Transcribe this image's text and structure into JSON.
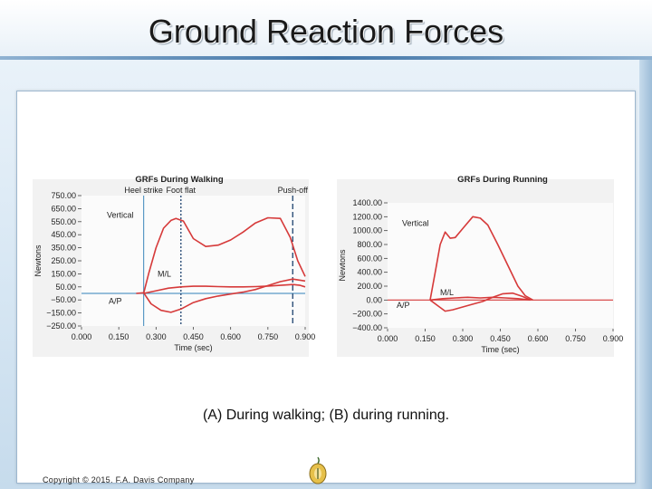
{
  "slide": {
    "title": "Ground Reaction Forces",
    "caption": "(A) During walking; (B) during running.",
    "copyright": "Copyright © 2015. F.A. Davis Company"
  },
  "colors": {
    "curve": "#d63a3a",
    "axis_line": "#5a9ac6",
    "marker_dark": "#2c4f78",
    "text": "#222222"
  },
  "chart_data": [
    {
      "type": "line",
      "title": "GRFs During Walking",
      "xlabel": "Time (sec)",
      "ylabel": "Newtons",
      "xlim": [
        0,
        0.9
      ],
      "ylim": [
        -250,
        750
      ],
      "x_ticks": [
        0.0,
        0.15,
        0.3,
        0.45,
        0.6,
        0.75,
        0.9
      ],
      "x_tick_labels": [
        "0.000",
        "0.150",
        "0.300",
        "0.450",
        "0.600",
        "0.750",
        "0.900"
      ],
      "y_ticks": [
        750,
        650,
        550,
        450,
        350,
        250,
        150,
        50,
        -50,
        -150,
        -250
      ],
      "y_tick_labels": [
        "750.00",
        "650.00",
        "550.00",
        "450.00",
        "350.00",
        "250.00",
        "150.00",
        "50.00",
        "−50.00",
        "−150.00",
        "−250.00"
      ],
      "zero_line": 0,
      "events": [
        {
          "label": "Heel strike",
          "x": 0.25,
          "style": "solid"
        },
        {
          "label": "Foot flat",
          "x": 0.4,
          "style": "dotted"
        },
        {
          "label": "Push-off",
          "x": 0.85,
          "style": "dashed"
        }
      ],
      "series": [
        {
          "name": "Vertical",
          "x": [
            0.25,
            0.27,
            0.3,
            0.33,
            0.36,
            0.38,
            0.41,
            0.45,
            0.5,
            0.55,
            0.6,
            0.65,
            0.7,
            0.75,
            0.8,
            0.84,
            0.87,
            0.9
          ],
          "y": [
            0,
            150,
            350,
            500,
            560,
            575,
            555,
            420,
            360,
            370,
            410,
            470,
            540,
            580,
            575,
            430,
            250,
            130
          ]
        },
        {
          "name": "M/L",
          "x": [
            0.25,
            0.3,
            0.35,
            0.4,
            0.45,
            0.5,
            0.55,
            0.6,
            0.65,
            0.7,
            0.75,
            0.8,
            0.85,
            0.88,
            0.9
          ],
          "y": [
            0,
            20,
            40,
            50,
            55,
            55,
            52,
            50,
            50,
            52,
            56,
            62,
            68,
            62,
            50
          ]
        },
        {
          "name": "A/P",
          "x": [
            0.22,
            0.25,
            0.28,
            0.32,
            0.36,
            0.4,
            0.45,
            0.5,
            0.55,
            0.6,
            0.65,
            0.7,
            0.75,
            0.8,
            0.85,
            0.9
          ],
          "y": [
            0,
            5,
            -80,
            -130,
            -145,
            -120,
            -70,
            -40,
            -20,
            -5,
            10,
            30,
            60,
            90,
            110,
            95
          ]
        }
      ]
    },
    {
      "type": "line",
      "title": "GRFs During Running",
      "xlabel": "Time (sec)",
      "ylabel": "Newtons",
      "xlim": [
        0,
        0.9
      ],
      "ylim": [
        -400,
        1400
      ],
      "x_ticks": [
        0.0,
        0.15,
        0.3,
        0.45,
        0.6,
        0.75,
        0.9
      ],
      "x_tick_labels": [
        "0.000",
        "0.150",
        "0.300",
        "0.450",
        "0.600",
        "0.750",
        "0.900"
      ],
      "y_ticks": [
        1400,
        1200,
        1000,
        800,
        600,
        400,
        200,
        0,
        -200,
        -400
      ],
      "y_tick_labels": [
        "1400.00",
        "1200.00",
        "1000.00",
        "800.00",
        "600.00",
        "400.00",
        "200.00",
        "0.00",
        "−200.00",
        "−400.00"
      ],
      "zero_line": 0,
      "series": [
        {
          "name": "Vertical",
          "x": [
            0.17,
            0.19,
            0.21,
            0.23,
            0.25,
            0.27,
            0.3,
            0.34,
            0.37,
            0.4,
            0.44,
            0.48,
            0.52,
            0.55,
            0.58
          ],
          "y": [
            0,
            400,
            800,
            980,
            890,
            900,
            1030,
            1200,
            1180,
            1080,
            800,
            500,
            200,
            60,
            0
          ]
        },
        {
          "name": "M/L",
          "x": [
            0.17,
            0.22,
            0.27,
            0.32,
            0.37,
            0.42,
            0.47,
            0.52,
            0.57
          ],
          "y": [
            0,
            20,
            30,
            40,
            30,
            40,
            30,
            20,
            0
          ]
        },
        {
          "name": "A/P",
          "x": [
            0.17,
            0.2,
            0.23,
            0.26,
            0.3,
            0.34,
            0.38,
            0.42,
            0.46,
            0.5,
            0.54,
            0.57
          ],
          "y": [
            0,
            -80,
            -160,
            -140,
            -100,
            -60,
            -20,
            40,
            90,
            100,
            50,
            0
          ]
        }
      ]
    }
  ]
}
